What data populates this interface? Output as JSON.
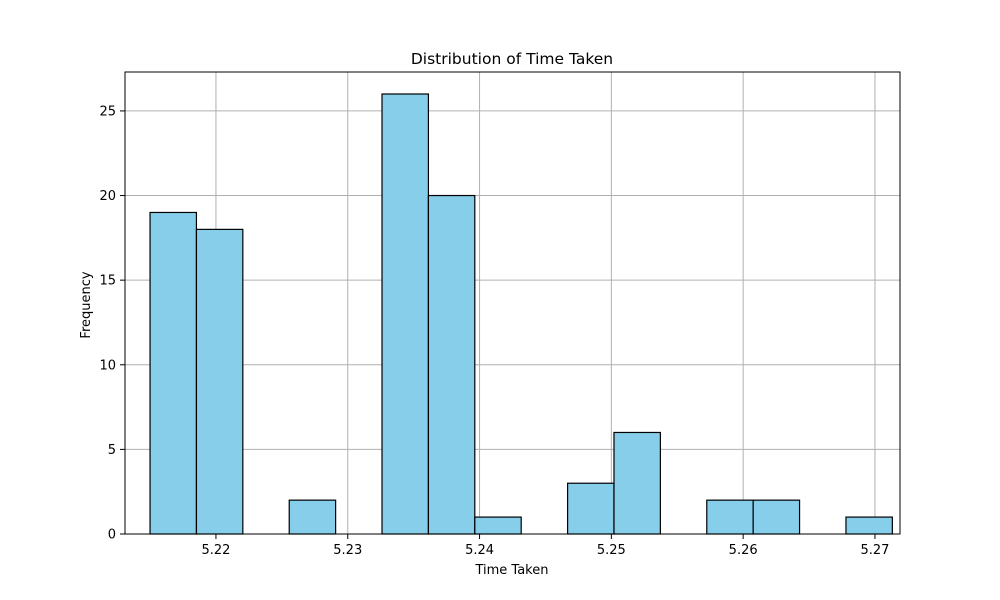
{
  "chart_data": {
    "type": "bar",
    "title": "Distribution of Time Taken",
    "xlabel": "Time Taken",
    "ylabel": "Frequency",
    "bin_width": 0.00352,
    "bins": [
      {
        "x0": 5.215,
        "count": 19
      },
      {
        "x0": 5.21852,
        "count": 18
      },
      {
        "x0": 5.22204,
        "count": 0
      },
      {
        "x0": 5.22556,
        "count": 2
      },
      {
        "x0": 5.22908,
        "count": 0
      },
      {
        "x0": 5.2326,
        "count": 26
      },
      {
        "x0": 5.23612,
        "count": 20
      },
      {
        "x0": 5.23964,
        "count": 1
      },
      {
        "x0": 5.24316,
        "count": 0
      },
      {
        "x0": 5.24668,
        "count": 3
      },
      {
        "x0": 5.2502,
        "count": 6
      },
      {
        "x0": 5.25372,
        "count": 0
      },
      {
        "x0": 5.25724,
        "count": 2
      },
      {
        "x0": 5.26076,
        "count": 2
      },
      {
        "x0": 5.26428,
        "count": 0
      },
      {
        "x0": 5.2678,
        "count": 1
      }
    ],
    "xlim": [
      5.2131,
      5.2719
    ],
    "ylim": [
      0,
      27.3
    ],
    "xticks": [
      5.22,
      5.23,
      5.24,
      5.25,
      5.26,
      5.27
    ],
    "xtick_labels": [
      "5.22",
      "5.23",
      "5.24",
      "5.25",
      "5.26",
      "5.27"
    ],
    "yticks": [
      0,
      5,
      10,
      15,
      20,
      25
    ],
    "ytick_labels": [
      "0",
      "5",
      "10",
      "15",
      "20",
      "25"
    ],
    "grid": true,
    "bar_color": "#87CEEB",
    "edge_color": "#000000"
  }
}
